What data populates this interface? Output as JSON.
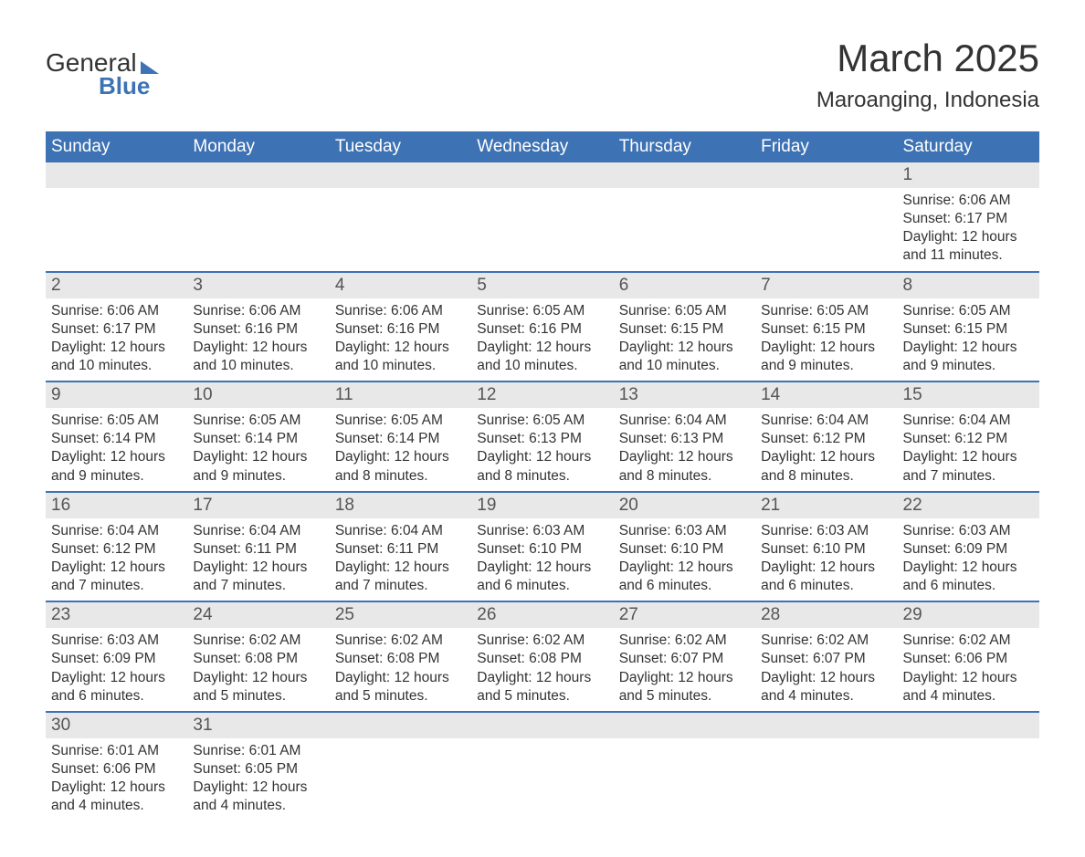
{
  "logo": {
    "word1": "General",
    "word2": "Blue"
  },
  "title": "March 2025",
  "subtitle": "Maroanging, Indonesia",
  "colors": {
    "header_bg": "#3d72b4",
    "header_text": "#ffffff",
    "daynum_bg": "#e8e8e8",
    "daynum_text": "#555555",
    "body_text": "#333333",
    "separator": "#3d72b4",
    "page_bg": "#ffffff"
  },
  "typography": {
    "title_fontsize": 42,
    "subtitle_fontsize": 24,
    "header_fontsize": 19,
    "daynum_fontsize": 19,
    "detail_fontsize": 15.5
  },
  "dayHeaders": [
    "Sunday",
    "Monday",
    "Tuesday",
    "Wednesday",
    "Thursday",
    "Friday",
    "Saturday"
  ],
  "weeks": [
    [
      null,
      null,
      null,
      null,
      null,
      null,
      {
        "day": "1",
        "sunrise": "Sunrise: 6:06 AM",
        "sunset": "Sunset: 6:17 PM",
        "daylight1": "Daylight: 12 hours",
        "daylight2": "and 11 minutes."
      }
    ],
    [
      {
        "day": "2",
        "sunrise": "Sunrise: 6:06 AM",
        "sunset": "Sunset: 6:17 PM",
        "daylight1": "Daylight: 12 hours",
        "daylight2": "and 10 minutes."
      },
      {
        "day": "3",
        "sunrise": "Sunrise: 6:06 AM",
        "sunset": "Sunset: 6:16 PM",
        "daylight1": "Daylight: 12 hours",
        "daylight2": "and 10 minutes."
      },
      {
        "day": "4",
        "sunrise": "Sunrise: 6:06 AM",
        "sunset": "Sunset: 6:16 PM",
        "daylight1": "Daylight: 12 hours",
        "daylight2": "and 10 minutes."
      },
      {
        "day": "5",
        "sunrise": "Sunrise: 6:05 AM",
        "sunset": "Sunset: 6:16 PM",
        "daylight1": "Daylight: 12 hours",
        "daylight2": "and 10 minutes."
      },
      {
        "day": "6",
        "sunrise": "Sunrise: 6:05 AM",
        "sunset": "Sunset: 6:15 PM",
        "daylight1": "Daylight: 12 hours",
        "daylight2": "and 10 minutes."
      },
      {
        "day": "7",
        "sunrise": "Sunrise: 6:05 AM",
        "sunset": "Sunset: 6:15 PM",
        "daylight1": "Daylight: 12 hours",
        "daylight2": "and 9 minutes."
      },
      {
        "day": "8",
        "sunrise": "Sunrise: 6:05 AM",
        "sunset": "Sunset: 6:15 PM",
        "daylight1": "Daylight: 12 hours",
        "daylight2": "and 9 minutes."
      }
    ],
    [
      {
        "day": "9",
        "sunrise": "Sunrise: 6:05 AM",
        "sunset": "Sunset: 6:14 PM",
        "daylight1": "Daylight: 12 hours",
        "daylight2": "and 9 minutes."
      },
      {
        "day": "10",
        "sunrise": "Sunrise: 6:05 AM",
        "sunset": "Sunset: 6:14 PM",
        "daylight1": "Daylight: 12 hours",
        "daylight2": "and 9 minutes."
      },
      {
        "day": "11",
        "sunrise": "Sunrise: 6:05 AM",
        "sunset": "Sunset: 6:14 PM",
        "daylight1": "Daylight: 12 hours",
        "daylight2": "and 8 minutes."
      },
      {
        "day": "12",
        "sunrise": "Sunrise: 6:05 AM",
        "sunset": "Sunset: 6:13 PM",
        "daylight1": "Daylight: 12 hours",
        "daylight2": "and 8 minutes."
      },
      {
        "day": "13",
        "sunrise": "Sunrise: 6:04 AM",
        "sunset": "Sunset: 6:13 PM",
        "daylight1": "Daylight: 12 hours",
        "daylight2": "and 8 minutes."
      },
      {
        "day": "14",
        "sunrise": "Sunrise: 6:04 AM",
        "sunset": "Sunset: 6:12 PM",
        "daylight1": "Daylight: 12 hours",
        "daylight2": "and 8 minutes."
      },
      {
        "day": "15",
        "sunrise": "Sunrise: 6:04 AM",
        "sunset": "Sunset: 6:12 PM",
        "daylight1": "Daylight: 12 hours",
        "daylight2": "and 7 minutes."
      }
    ],
    [
      {
        "day": "16",
        "sunrise": "Sunrise: 6:04 AM",
        "sunset": "Sunset: 6:12 PM",
        "daylight1": "Daylight: 12 hours",
        "daylight2": "and 7 minutes."
      },
      {
        "day": "17",
        "sunrise": "Sunrise: 6:04 AM",
        "sunset": "Sunset: 6:11 PM",
        "daylight1": "Daylight: 12 hours",
        "daylight2": "and 7 minutes."
      },
      {
        "day": "18",
        "sunrise": "Sunrise: 6:04 AM",
        "sunset": "Sunset: 6:11 PM",
        "daylight1": "Daylight: 12 hours",
        "daylight2": "and 7 minutes."
      },
      {
        "day": "19",
        "sunrise": "Sunrise: 6:03 AM",
        "sunset": "Sunset: 6:10 PM",
        "daylight1": "Daylight: 12 hours",
        "daylight2": "and 6 minutes."
      },
      {
        "day": "20",
        "sunrise": "Sunrise: 6:03 AM",
        "sunset": "Sunset: 6:10 PM",
        "daylight1": "Daylight: 12 hours",
        "daylight2": "and 6 minutes."
      },
      {
        "day": "21",
        "sunrise": "Sunrise: 6:03 AM",
        "sunset": "Sunset: 6:10 PM",
        "daylight1": "Daylight: 12 hours",
        "daylight2": "and 6 minutes."
      },
      {
        "day": "22",
        "sunrise": "Sunrise: 6:03 AM",
        "sunset": "Sunset: 6:09 PM",
        "daylight1": "Daylight: 12 hours",
        "daylight2": "and 6 minutes."
      }
    ],
    [
      {
        "day": "23",
        "sunrise": "Sunrise: 6:03 AM",
        "sunset": "Sunset: 6:09 PM",
        "daylight1": "Daylight: 12 hours",
        "daylight2": "and 6 minutes."
      },
      {
        "day": "24",
        "sunrise": "Sunrise: 6:02 AM",
        "sunset": "Sunset: 6:08 PM",
        "daylight1": "Daylight: 12 hours",
        "daylight2": "and 5 minutes."
      },
      {
        "day": "25",
        "sunrise": "Sunrise: 6:02 AM",
        "sunset": "Sunset: 6:08 PM",
        "daylight1": "Daylight: 12 hours",
        "daylight2": "and 5 minutes."
      },
      {
        "day": "26",
        "sunrise": "Sunrise: 6:02 AM",
        "sunset": "Sunset: 6:08 PM",
        "daylight1": "Daylight: 12 hours",
        "daylight2": "and 5 minutes."
      },
      {
        "day": "27",
        "sunrise": "Sunrise: 6:02 AM",
        "sunset": "Sunset: 6:07 PM",
        "daylight1": "Daylight: 12 hours",
        "daylight2": "and 5 minutes."
      },
      {
        "day": "28",
        "sunrise": "Sunrise: 6:02 AM",
        "sunset": "Sunset: 6:07 PM",
        "daylight1": "Daylight: 12 hours",
        "daylight2": "and 4 minutes."
      },
      {
        "day": "29",
        "sunrise": "Sunrise: 6:02 AM",
        "sunset": "Sunset: 6:06 PM",
        "daylight1": "Daylight: 12 hours",
        "daylight2": "and 4 minutes."
      }
    ],
    [
      {
        "day": "30",
        "sunrise": "Sunrise: 6:01 AM",
        "sunset": "Sunset: 6:06 PM",
        "daylight1": "Daylight: 12 hours",
        "daylight2": "and 4 minutes."
      },
      {
        "day": "31",
        "sunrise": "Sunrise: 6:01 AM",
        "sunset": "Sunset: 6:05 PM",
        "daylight1": "Daylight: 12 hours",
        "daylight2": "and 4 minutes."
      },
      null,
      null,
      null,
      null,
      null
    ]
  ]
}
